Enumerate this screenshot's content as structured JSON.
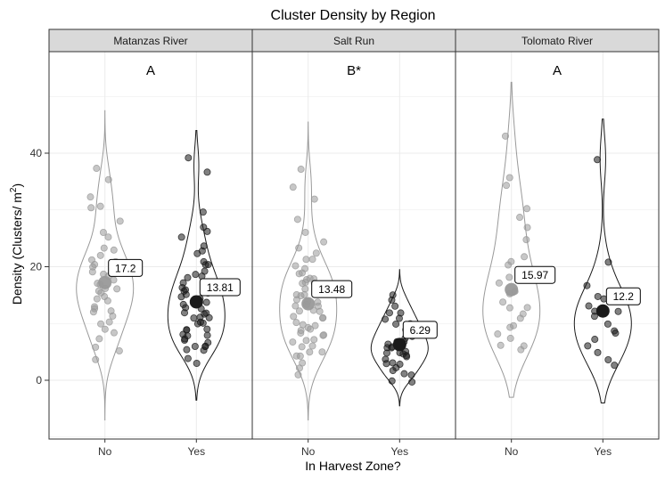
{
  "chart_data": {
    "type": "violin",
    "title": "Cluster Density by Region",
    "xlabel": "In Harvest Zone?",
    "ylabel_main": "Density (Clusters/ m",
    "ylabel_sup": "2",
    "ylabel_close": ")",
    "ylim": [
      -10,
      56
    ],
    "yticks": [
      0,
      20,
      40
    ],
    "categories": [
      "No",
      "Yes"
    ],
    "colors": {
      "No": "#999999",
      "Yes": "#1a1a1a",
      "strip_bg": "#d9d9d9",
      "grid": "#ebebeb"
    },
    "panels": [
      {
        "name": "Matanzas River",
        "significance": "A",
        "groups": [
          {
            "category": "No",
            "mean": 17.2,
            "mean_label": "17.2",
            "min": -7,
            "max": 47.5,
            "peak": 18,
            "points": [
              37,
              35,
              32,
              31,
              30,
              28,
              26,
              25,
              23,
              23,
              22,
              21,
              21,
              20,
              20,
              19,
              19,
              18,
              18,
              17,
              17,
              16,
              16,
              16,
              15,
              15,
              14,
              14,
              13,
              13,
              12,
              12,
              11,
              10,
              10,
              9,
              8,
              7,
              6,
              5,
              4
            ]
          },
          {
            "category": "Yes",
            "mean": 13.81,
            "mean_label": "13.81",
            "min": -3.5,
            "max": 44,
            "peak": 14,
            "points": [
              39,
              37,
              30,
              27,
              26,
              25,
              24,
              23,
              22,
              21,
              20,
              20,
              19,
              19,
              18,
              18,
              17,
              17,
              16,
              16,
              16,
              15,
              15,
              15,
              14,
              14,
              14,
              13,
              13,
              13,
              12,
              12,
              12,
              11,
              11,
              11,
              10,
              10,
              10,
              9,
              9,
              9,
              8,
              8,
              8,
              7,
              7,
              7,
              6,
              6,
              6,
              5,
              5,
              4,
              3
            ]
          }
        ]
      },
      {
        "name": "Salt Run",
        "significance": "B*",
        "groups": [
          {
            "category": "No",
            "mean": 13.48,
            "mean_label": "13.48",
            "min": -7,
            "max": 45.5,
            "peak": 14,
            "points": [
              37,
              34,
              32,
              28,
              26,
              24,
              23,
              22,
              21,
              21,
              20,
              20,
              19,
              19,
              18,
              18,
              18,
              17,
              17,
              17,
              16,
              16,
              16,
              15,
              15,
              15,
              14,
              14,
              14,
              13,
              13,
              13,
              12,
              12,
              12,
              11,
              11,
              11,
              10,
              10,
              10,
              9,
              9,
              9,
              8,
              8,
              8,
              7,
              7,
              7,
              6,
              6,
              5,
              5,
              4,
              4,
              3,
              2,
              1
            ]
          },
          {
            "category": "Yes",
            "mean": 6.29,
            "mean_label": "6.29",
            "min": -4.5,
            "max": 19.5,
            "peak": 6,
            "points": [
              15,
              14,
              13,
              12,
              12,
              11,
              11,
              10,
              10,
              9,
              9,
              9,
              8,
              8,
              8,
              7,
              7,
              7,
              6,
              6,
              6,
              6,
              5,
              5,
              5,
              5,
              4,
              4,
              4,
              3,
              3,
              3,
              2,
              2,
              1,
              1,
              0,
              0
            ]
          }
        ]
      },
      {
        "name": "Tolomato River",
        "significance": "A",
        "groups": [
          {
            "category": "No",
            "mean": 15.97,
            "mean_label": "15.97",
            "min": -3,
            "max": 52.5,
            "peak": 14,
            "points": [
              43,
              36,
              34,
              30,
              29,
              27,
              25,
              22,
              21,
              20,
              18,
              17,
              16,
              15,
              14,
              13,
              13,
              12,
              11,
              10,
              9,
              8,
              7,
              6,
              6,
              5
            ]
          },
          {
            "category": "Yes",
            "mean": 12.2,
            "mean_label": "12.2",
            "min": -4,
            "max": 46,
            "peak": 10,
            "points": [
              39,
              21,
              17,
              15,
              14,
              13,
              12,
              12,
              11,
              10,
              9,
              8,
              7,
              6,
              5,
              4,
              3
            ]
          }
        ]
      }
    ]
  }
}
